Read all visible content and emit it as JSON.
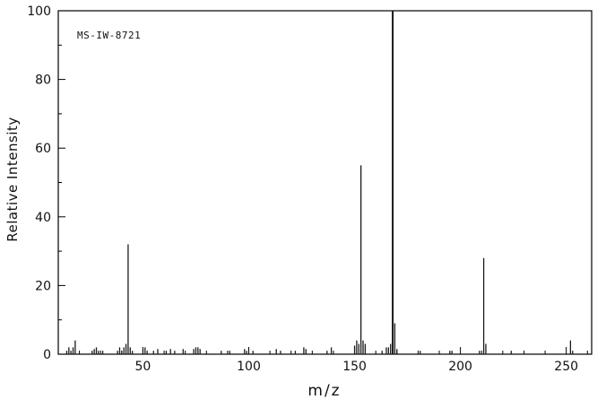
{
  "annotation": {
    "label": "MS-IW-8721"
  },
  "chart_data": {
    "type": "bar",
    "title": "MS-IW-8721",
    "xlabel": "m/z",
    "ylabel": "Relative Intensity",
    "xlim": [
      10,
      262
    ],
    "ylim": [
      0,
      100
    ],
    "x_major_ticks": [
      50,
      100,
      150,
      200,
      250
    ],
    "x_minor_step": 10,
    "y_major_ticks": [
      0,
      20,
      40,
      60,
      80,
      100
    ],
    "y_minor_step": 10,
    "grid": false,
    "legend": false,
    "frame": true,
    "axis_color": "#000000",
    "peak_color": "#1a1a1a",
    "peaks": [
      [
        14,
        1
      ],
      [
        15,
        2
      ],
      [
        16,
        1
      ],
      [
        17,
        2
      ],
      [
        18,
        4
      ],
      [
        26,
        1
      ],
      [
        27,
        1.5
      ],
      [
        28,
        2
      ],
      [
        29,
        1
      ],
      [
        31,
        1
      ],
      [
        38,
        1
      ],
      [
        39,
        2
      ],
      [
        40,
        1
      ],
      [
        41,
        2
      ],
      [
        42,
        3
      ],
      [
        43,
        32
      ],
      [
        44,
        2
      ],
      [
        45,
        1
      ],
      [
        50,
        1.5
      ],
      [
        51,
        2
      ],
      [
        52,
        1
      ],
      [
        55,
        1
      ],
      [
        57,
        1.5
      ],
      [
        61,
        1
      ],
      [
        63,
        1.5
      ],
      [
        65,
        1
      ],
      [
        69,
        1.5
      ],
      [
        74,
        1.5
      ],
      [
        75,
        2
      ],
      [
        76,
        2
      ],
      [
        77,
        1.5
      ],
      [
        87,
        1
      ],
      [
        91,
        1
      ],
      [
        98,
        1.5
      ],
      [
        99,
        1
      ],
      [
        102,
        1
      ],
      [
        113,
        1.5
      ],
      [
        115,
        1
      ],
      [
        122,
        1
      ],
      [
        126,
        2
      ],
      [
        127,
        1.5
      ],
      [
        137,
        1
      ],
      [
        139,
        2
      ],
      [
        150,
        2.5
      ],
      [
        151,
        4
      ],
      [
        152,
        3
      ],
      [
        153,
        55
      ],
      [
        154,
        4
      ],
      [
        155,
        3
      ],
      [
        163,
        1
      ],
      [
        165,
        2
      ],
      [
        166,
        2
      ],
      [
        167,
        3
      ],
      [
        168,
        100
      ],
      [
        169,
        9
      ],
      [
        170,
        1.5
      ],
      [
        181,
        1
      ],
      [
        195,
        1
      ],
      [
        196,
        1
      ],
      [
        209,
        1
      ],
      [
        211,
        28
      ],
      [
        212,
        3
      ],
      [
        224,
        1
      ],
      [
        252,
        4
      ],
      [
        253,
        1
      ]
    ]
  }
}
